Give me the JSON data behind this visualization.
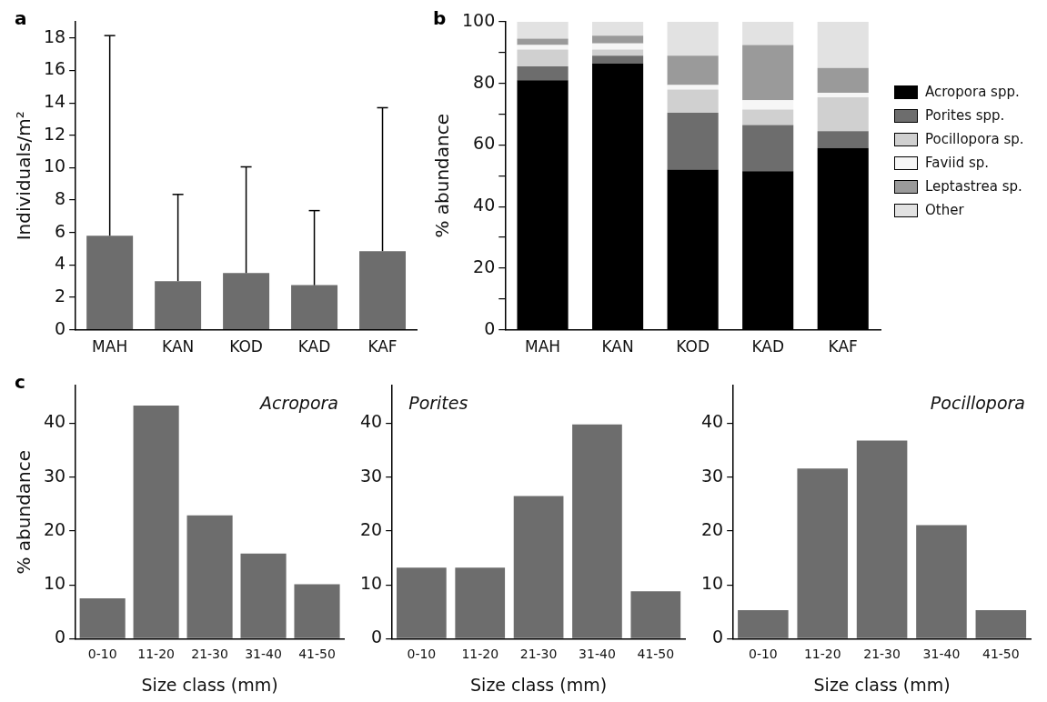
{
  "chart_data": [
    {
      "type": "bar",
      "categories": [
        "MAH",
        "KAN",
        "KOD",
        "KAD",
        "KAF"
      ],
      "values": [
        5.8,
        3.0,
        3.5,
        2.75,
        4.85
      ],
      "color": "#6d6d6d",
      "errors": [
        [
          5.8,
          18.15
        ],
        [
          3.0,
          8.35
        ],
        [
          3.5,
          10.05
        ],
        [
          2.75,
          7.35
        ],
        [
          4.85,
          13.7
        ]
      ],
      "ylabel": "Individuals/m²",
      "ylim": [
        0,
        19
      ],
      "yticks": [
        0,
        2,
        4,
        6,
        8,
        10,
        12,
        14,
        16,
        18
      ],
      "grid": false,
      "legend": false,
      "annotations": [
        "a"
      ]
    },
    {
      "type": "bar",
      "stacked": true,
      "categories": [
        "MAH",
        "KAN",
        "KOD",
        "KAD",
        "KAF"
      ],
      "ylabel": "% abundance",
      "ylim": [
        0,
        100
      ],
      "yticks": [
        0,
        {
          "value": 10,
          "label": null
        },
        20,
        {
          "value": 30,
          "label": null
        },
        40,
        {
          "value": 50,
          "label": null
        },
        60,
        {
          "value": 70,
          "label": null
        },
        80,
        {
          "value": 90,
          "label": null
        },
        100
      ],
      "grid": false,
      "legend": "right",
      "annotations": [
        "b"
      ],
      "series": [
        {
          "name": "Acropora spp.",
          "color": "#000000",
          "values": [
            81,
            86.5,
            52,
            51.5,
            59
          ]
        },
        {
          "name": "Porites spp.",
          "color": "#6d6d6d",
          "values": [
            4.5,
            2.5,
            18.5,
            15,
            5.5
          ]
        },
        {
          "name": "Pocillopora sp.",
          "color": "#d0d0d0",
          "values": [
            5.5,
            2,
            7.5,
            5,
            11
          ]
        },
        {
          "name": "Faviid sp.",
          "color": "#f6f6f6",
          "values": [
            1.5,
            2,
            1.5,
            3,
            1.5
          ]
        },
        {
          "name": "Leptastrea sp.",
          "color": "#9a9a9a",
          "values": [
            2,
            2.5,
            9.5,
            18,
            8
          ]
        },
        {
          "name": "Other",
          "color": "#e2e2e2",
          "values": [
            5.5,
            4.5,
            11,
            7.5,
            15
          ]
        }
      ]
    },
    {
      "type": "bar",
      "title": "Acropora",
      "categories": [
        "0-10",
        "11-20",
        "21-30",
        "31-40",
        "41-50"
      ],
      "values": [
        7.5,
        43.3,
        22.9,
        15.8,
        10.1
      ],
      "color": "#6d6d6d",
      "xlabel": "Size class (mm)",
      "ylabel": "% abundance",
      "ylim": [
        0,
        47
      ],
      "yticks": [
        0,
        10,
        20,
        30,
        40
      ],
      "grid": false,
      "legend": false,
      "annotations": [
        "c"
      ]
    },
    {
      "type": "bar",
      "title": "Porites",
      "categories": [
        "0-10",
        "11-20",
        "21-30",
        "31-40",
        "41-50"
      ],
      "values": [
        13.2,
        13.2,
        26.5,
        39.8,
        8.8
      ],
      "color": "#6d6d6d",
      "xlabel": "Size class (mm)",
      "ylim": [
        0,
        47
      ],
      "yticks": [
        0,
        10,
        20,
        30,
        40
      ],
      "grid": false,
      "legend": false
    },
    {
      "type": "bar",
      "title": "Pocillopora",
      "categories": [
        "0-10",
        "11-20",
        "21-30",
        "31-40",
        "41-50"
      ],
      "values": [
        5.3,
        31.6,
        36.8,
        21.1,
        5.3
      ],
      "color": "#6d6d6d",
      "xlabel": "Size class (mm)",
      "ylim": [
        0,
        47
      ],
      "yticks": [
        0,
        10,
        20,
        30,
        40
      ],
      "grid": false,
      "legend": false
    }
  ]
}
